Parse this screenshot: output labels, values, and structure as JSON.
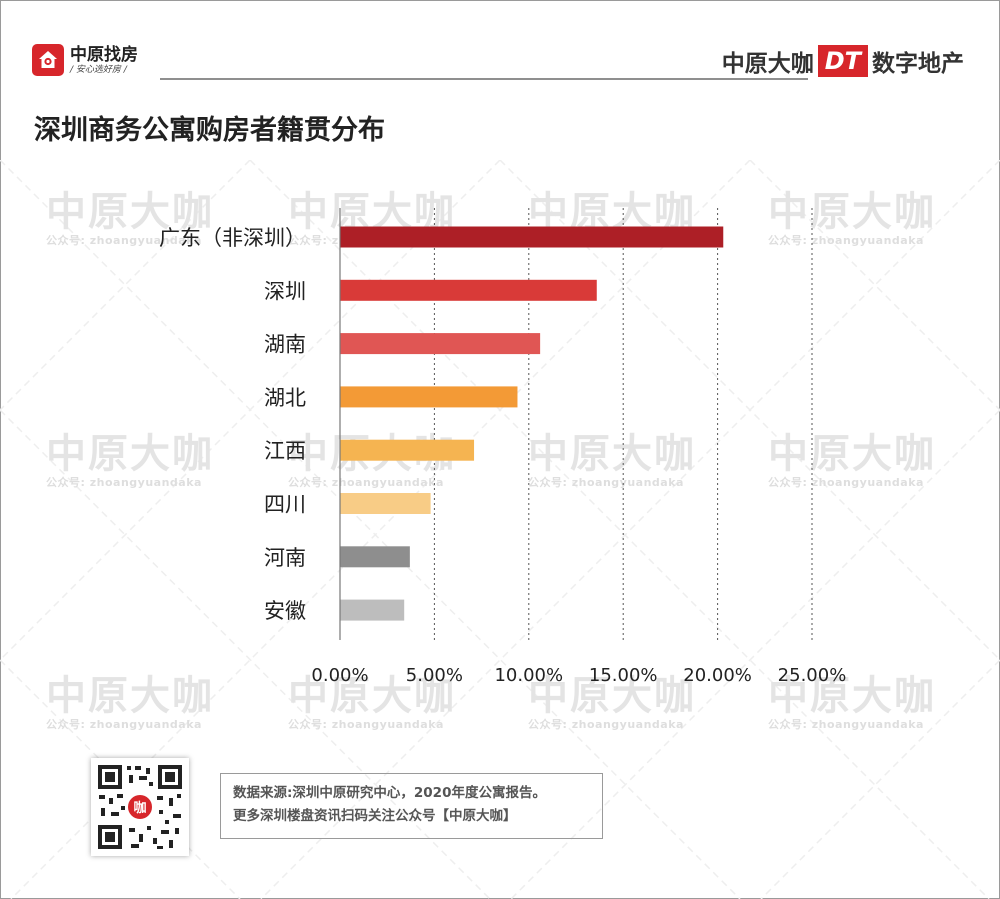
{
  "header": {
    "left_logo_name": "中原找房",
    "left_logo_slogan": "/ 安心选好房 /",
    "right_logo_prefix": "中原大咖",
    "right_logo_badge": "DT",
    "right_logo_suffix": "数字地产"
  },
  "watermark": {
    "title": "中原大咖",
    "subtitle": "公众号: zhoangyuandaka"
  },
  "chart_data": {
    "type": "bar",
    "orientation": "horizontal",
    "title": "深圳商务公寓购房者籍贯分布",
    "categories": [
      "广东（非深圳）",
      "深圳",
      "湖南",
      "湖北",
      "江西",
      "四川",
      "河南",
      "安徽"
    ],
    "values": [
      20.3,
      13.6,
      10.6,
      9.4,
      7.1,
      4.8,
      3.7,
      3.4
    ],
    "colors": [
      "#ad1f26",
      "#d93a38",
      "#e05654",
      "#f39a36",
      "#f5b451",
      "#f8cc86",
      "#8e8e8e",
      "#bdbdbd"
    ],
    "xlim": [
      0,
      25
    ],
    "xticks": [
      "0.00%",
      "5.00%",
      "10.00%",
      "15.00%",
      "20.00%",
      "25.00%"
    ],
    "grid": "vertical dashed"
  },
  "footer": {
    "source_line1": "数据来源:深圳中原研究中心，2020年度公寓报告。",
    "source_line2": "更多深圳楼盘资讯扫码关注公众号【中原大咖】",
    "qr_center_label": "咖"
  }
}
